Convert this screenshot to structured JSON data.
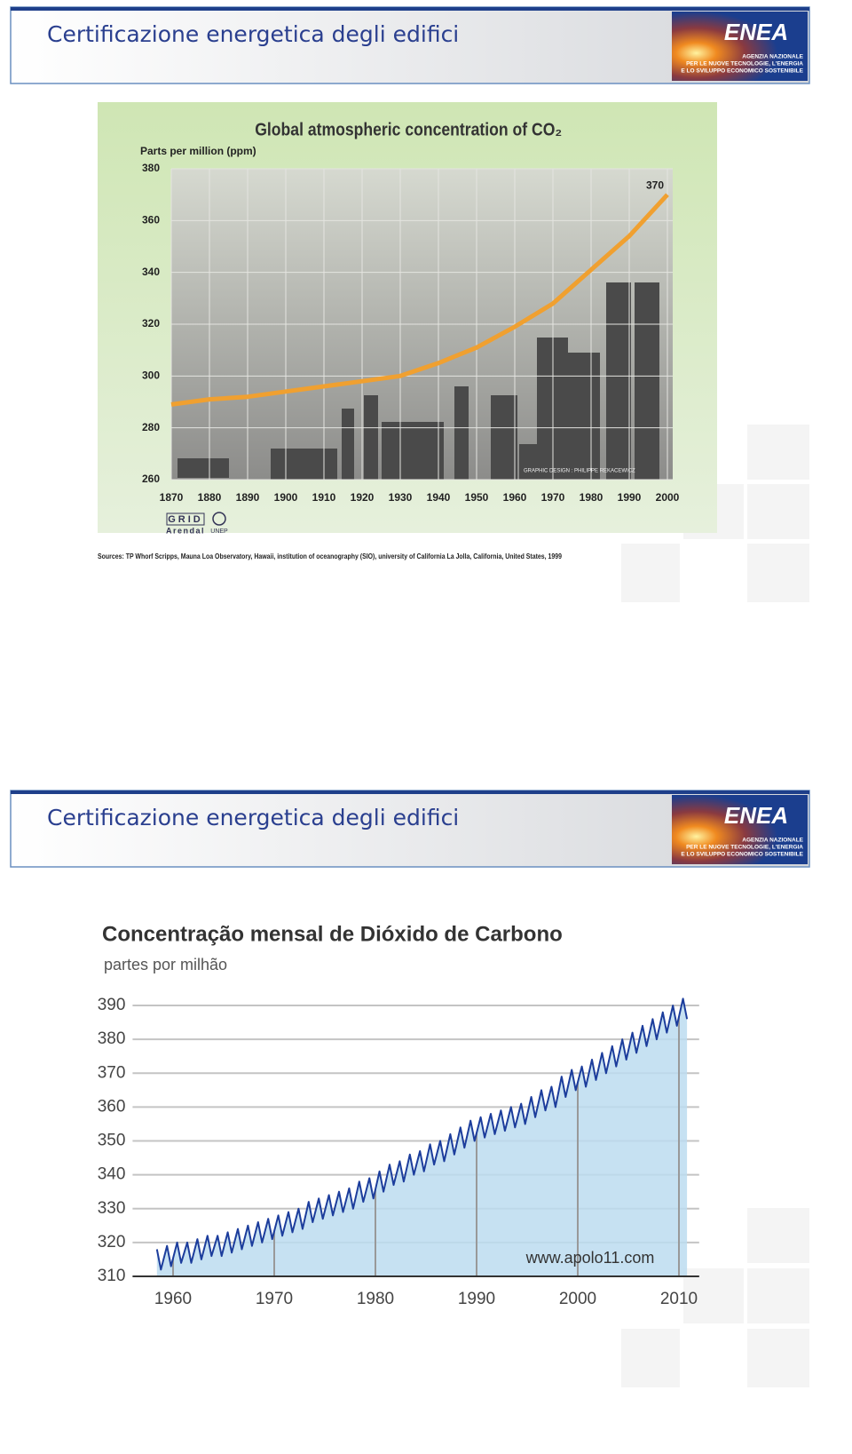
{
  "slides": [
    {
      "header": "Certificazione energetica degli edifici",
      "logo": {
        "name": "ENEA",
        "lines": [
          "AGENZIA NAZIONALE",
          "PER LE NUOVE TECNOLOGIE, L'ENERGIA",
          "E LO SVILUPPO ECONOMICO SOSTENIBILE"
        ]
      }
    },
    {
      "header": "Certificazione energetica degli edifici",
      "logo": {
        "name": "ENEA",
        "lines": [
          "AGENZIA NAZIONALE",
          "PER LE NUOVE TECNOLOGIE, L'ENERGIA",
          "E LO SVILUPPO ECONOMICO SOSTENIBILE"
        ]
      }
    }
  ],
  "chart_data": [
    {
      "type": "line",
      "title": "Global atmospheric concentration of CO₂",
      "y_label": "Parts per million (ppm)",
      "x": [
        1870,
        1880,
        1890,
        1900,
        1910,
        1920,
        1930,
        1940,
        1950,
        1960,
        1970,
        1980,
        1990,
        2000
      ],
      "values": [
        289,
        291,
        292,
        294,
        296,
        298,
        300,
        305,
        311,
        319,
        328,
        341,
        354,
        370
      ],
      "color": "#f0a030",
      "label_last": true,
      "xlim": [
        1870,
        2000
      ],
      "xticks": [
        1870,
        1880,
        1890,
        1900,
        1910,
        1920,
        1930,
        1940,
        1950,
        1960,
        1970,
        1980,
        1990,
        2000
      ],
      "ylim": [
        260,
        380
      ],
      "yticks": [
        260,
        280,
        300,
        320,
        340,
        360,
        380
      ],
      "grid": true,
      "credit": "GRAPHIC DESIGN : PHILIPPE REKACEWICZ",
      "logos": [
        "GRID",
        "Arendal",
        "UNEP"
      ],
      "source": "Sources: TP Whorf  Scripps, Mauna Loa Observatory, Hawaii, institution of oceanography (SIO), university of California La Jolla, California, United States, 1999"
    },
    {
      "type": "line",
      "title": "Concentração mensal de Dióxido de Carbono",
      "y_label": "partes por milhão",
      "x": [
        1958.4,
        1958.8,
        1959.4,
        1959.8,
        1960.4,
        1960.8,
        1961.4,
        1961.8,
        1962.4,
        1962.8,
        1963.4,
        1963.8,
        1964.4,
        1964.8,
        1965.4,
        1965.8,
        1966.4,
        1966.8,
        1967.4,
        1967.8,
        1968.4,
        1968.8,
        1969.4,
        1969.8,
        1970.4,
        1970.8,
        1971.4,
        1971.8,
        1972.4,
        1972.8,
        1973.4,
        1973.8,
        1974.4,
        1974.8,
        1975.4,
        1975.8,
        1976.4,
        1976.8,
        1977.4,
        1977.8,
        1978.4,
        1978.8,
        1979.4,
        1979.8,
        1980.4,
        1980.8,
        1981.4,
        1981.8,
        1982.4,
        1982.8,
        1983.4,
        1983.8,
        1984.4,
        1984.8,
        1985.4,
        1985.8,
        1986.4,
        1986.8,
        1987.4,
        1987.8,
        1988.4,
        1988.8,
        1989.4,
        1989.8,
        1990.4,
        1990.8,
        1991.4,
        1991.8,
        1992.4,
        1992.8,
        1993.4,
        1993.8,
        1994.4,
        1994.8,
        1995.4,
        1995.8,
        1996.4,
        1996.8,
        1997.4,
        1997.8,
        1998.4,
        1998.8,
        1999.4,
        1999.8,
        2000.4,
        2000.8,
        2001.4,
        2001.8,
        2002.4,
        2002.8,
        2003.4,
        2003.8,
        2004.4,
        2004.8,
        2005.4,
        2005.8,
        2006.4,
        2006.8,
        2007.4,
        2007.8,
        2008.4,
        2008.8,
        2009.4,
        2009.8,
        2010.4,
        2010.8
      ],
      "values": [
        318,
        312,
        319,
        313,
        320,
        314,
        320,
        314,
        321,
        315,
        322,
        316,
        322,
        316,
        323,
        317,
        324,
        318,
        325,
        319,
        326,
        320,
        327,
        321,
        328,
        322,
        329,
        323,
        330,
        324,
        332,
        326,
        333,
        327,
        334,
        328,
        335,
        329,
        336,
        330,
        338,
        332,
        339,
        333,
        341,
        335,
        343,
        337,
        344,
        338,
        346,
        340,
        347,
        341,
        349,
        343,
        350,
        344,
        352,
        346,
        354,
        348,
        356,
        350,
        357,
        351,
        358,
        352,
        359,
        353,
        360,
        354,
        361,
        355,
        363,
        357,
        365,
        359,
        366,
        360,
        369,
        363,
        371,
        365,
        372,
        366,
        374,
        368,
        376,
        370,
        378,
        372,
        380,
        374,
        382,
        376,
        384,
        378,
        386,
        380,
        388,
        382,
        390,
        384,
        392,
        386
      ],
      "color": "#1c3d9c",
      "fill": "#bcdcf0",
      "xlim": [
        1956,
        2012
      ],
      "xticks": [
        1960,
        1970,
        1980,
        1990,
        2000,
        2010
      ],
      "ylim": [
        310,
        395
      ],
      "yticks": [
        310,
        320,
        330,
        340,
        350,
        360,
        370,
        380,
        390
      ],
      "grid": true,
      "annotation": "www.apolo11.com"
    }
  ]
}
